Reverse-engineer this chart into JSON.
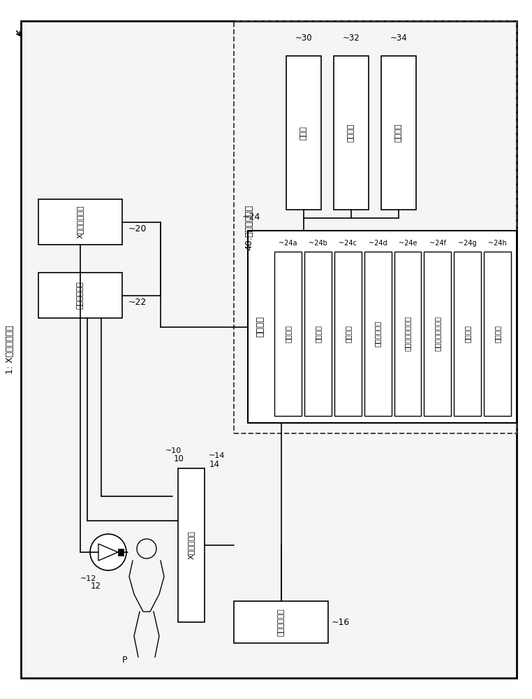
{
  "bg_color": "#ffffff",
  "title_label": "1: X射线诊断装置",
  "label_40": "40:图像处理装置",
  "label_24": "~24",
  "label_processing": "处理电路",
  "sub_boxes": [
    {
      "label": "重建功能",
      "tag": "~24a"
    },
    {
      "label": "取得功能",
      "tag": "~24b"
    },
    {
      "label": "指定功能",
      "tag": "~24c"
    },
    {
      "label": "坐标设定功能",
      "tag": "~24d"
    },
    {
      "label": "合成图像生成功能",
      "tag": "~24e"
    },
    {
      "label": "叠加图像生成功能",
      "tag": "~24f"
    },
    {
      "label": "计算功能",
      "tag": "~24g"
    },
    {
      "label": "显示功能",
      "tag": "~24h"
    }
  ],
  "top_boxes": [
    {
      "label": "显示器",
      "tag": "~30"
    },
    {
      "label": "输入电路",
      "tag": "~32"
    },
    {
      "label": "存储电路",
      "tag": "~34"
    }
  ],
  "left_box1_label": "X射线控制电路",
  "left_box1_tag": "~20",
  "left_box2_label": "机构控制电路",
  "left_box2_tag": "~22",
  "det_label": "X射线检测器",
  "det_tag": "14",
  "det_num": "~14",
  "xray_tag": "10",
  "xray_num": "~10",
  "xray_src_tag": "12",
  "xray_src_num": "~12",
  "acq_label": "图像取得电路",
  "acq_tag": "~16",
  "patient_label": "P"
}
